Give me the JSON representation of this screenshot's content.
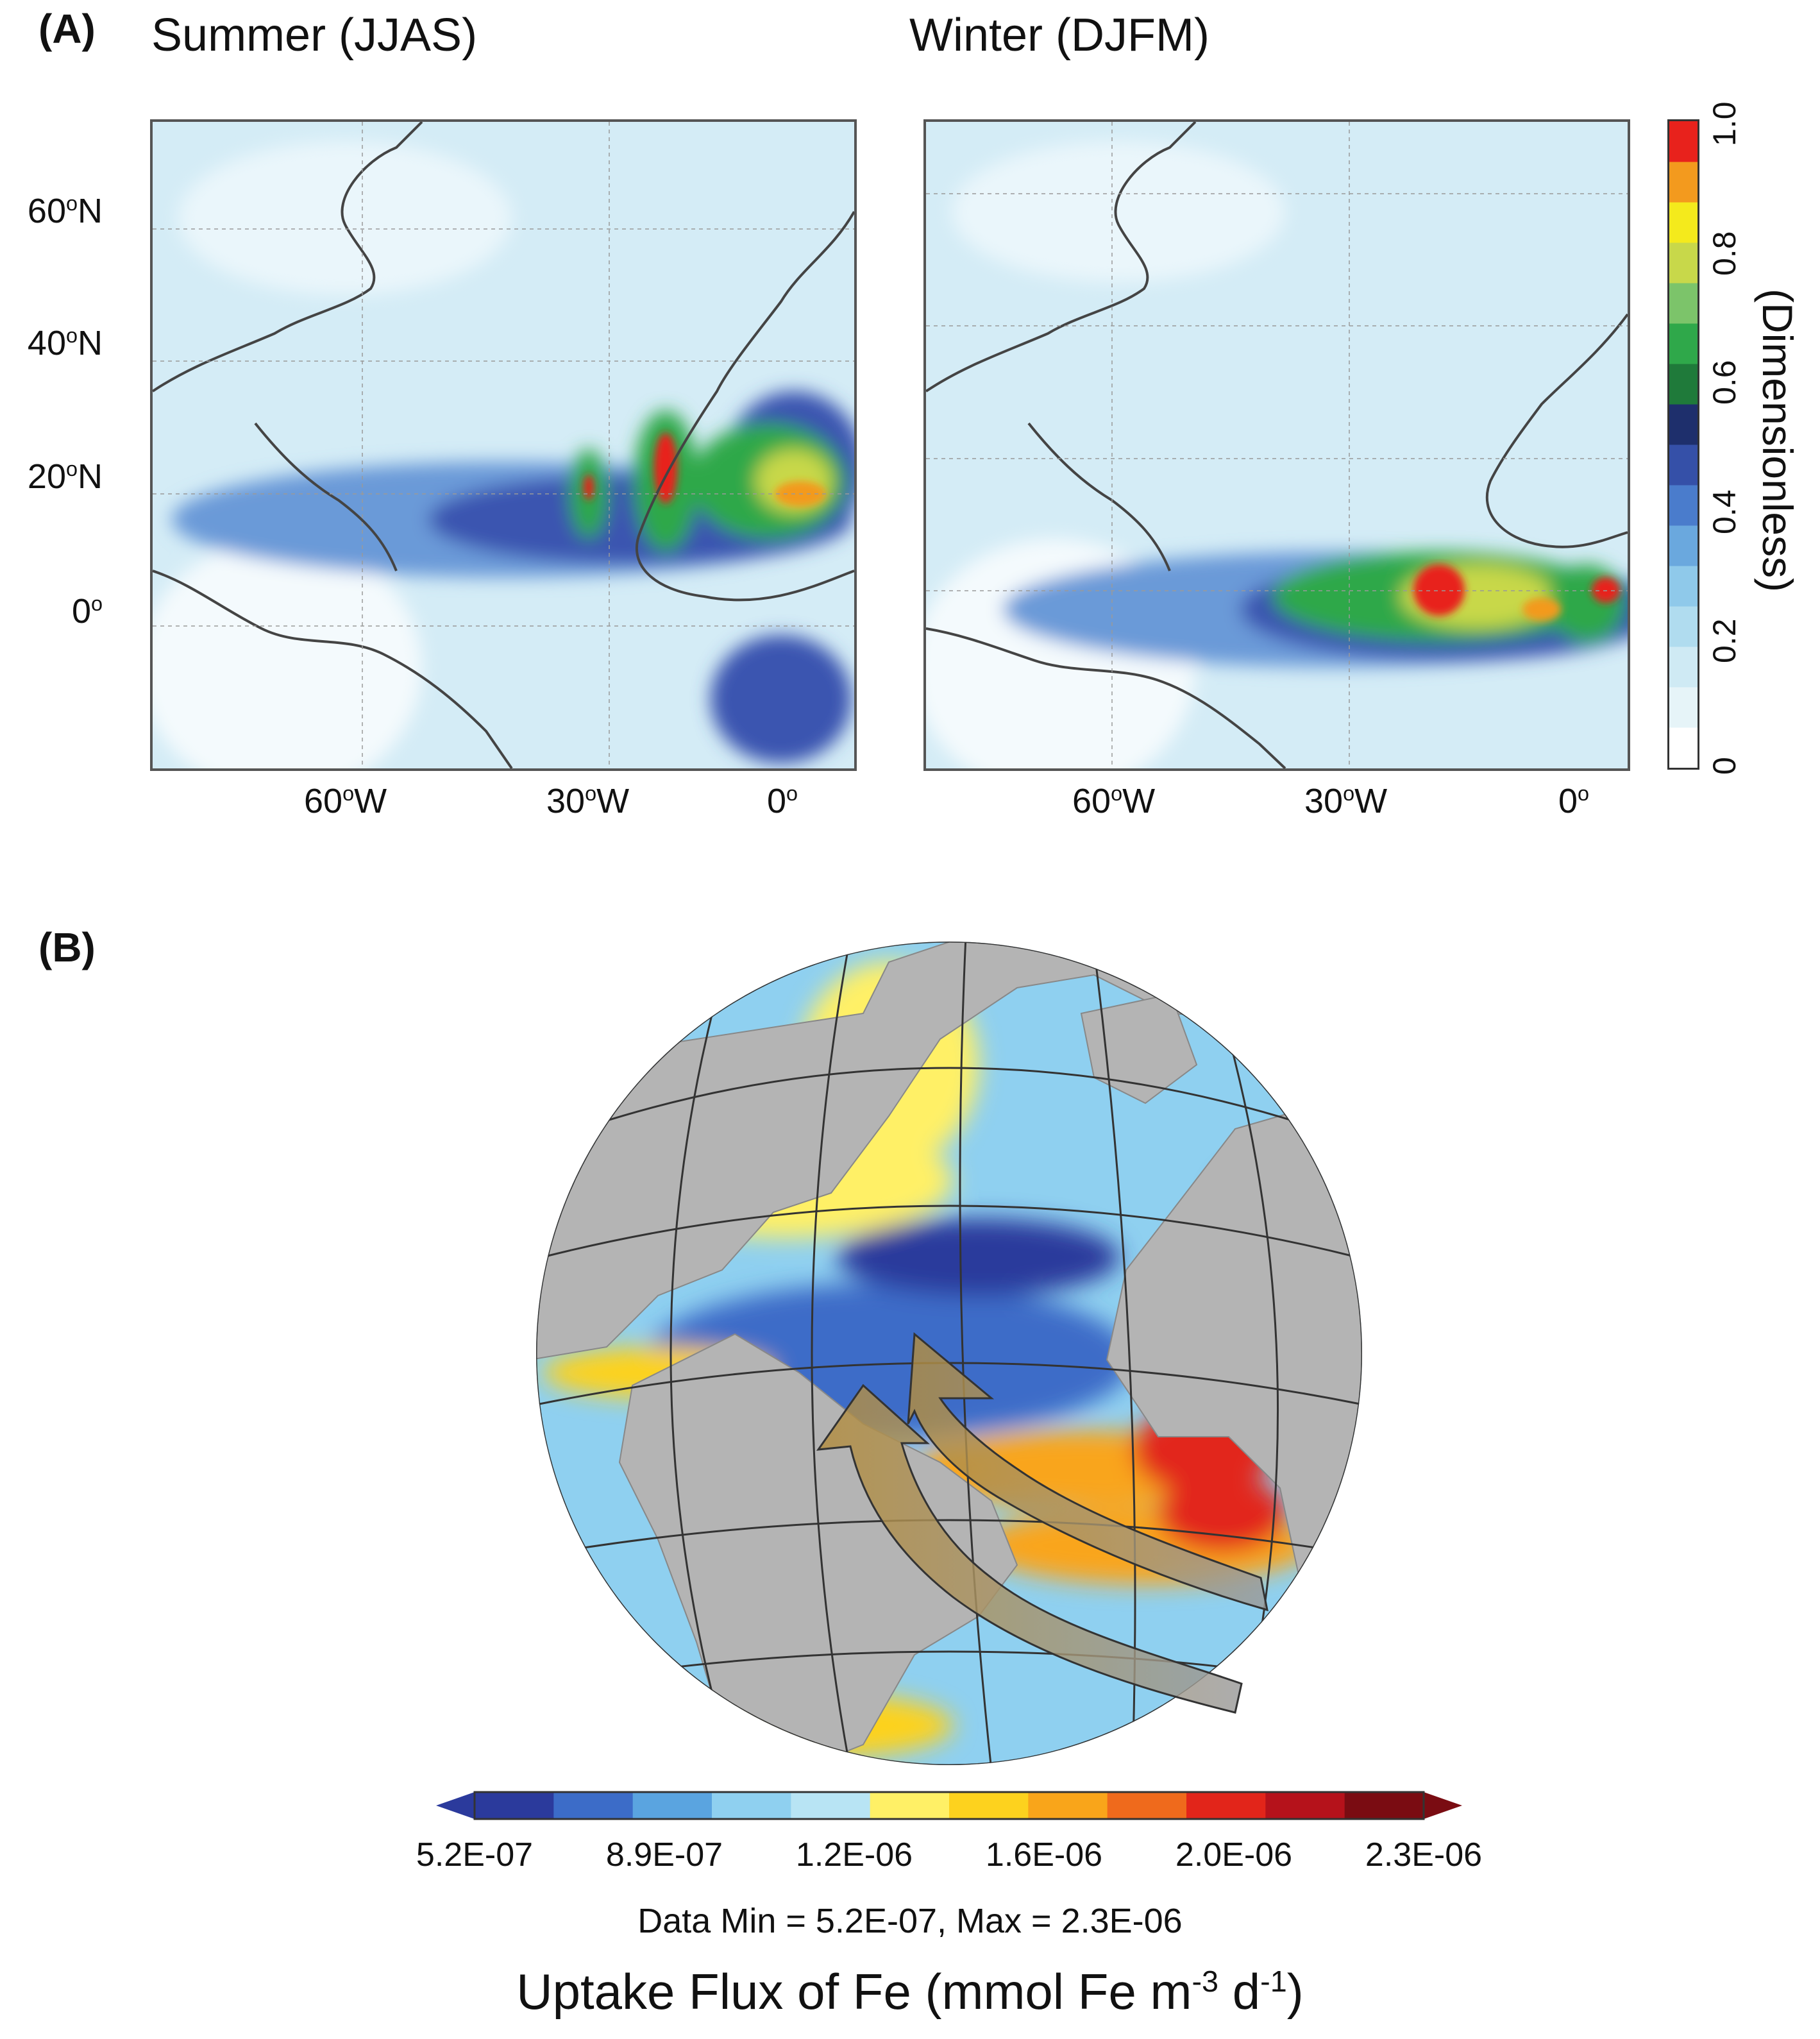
{
  "panel_a": {
    "label": "(A)",
    "maps": [
      {
        "title": "Summer (JJAS)"
      },
      {
        "title": "Winter (DJFM)"
      }
    ],
    "lat_ticks": [
      {
        "deg": "60",
        "suffix": "N"
      },
      {
        "deg": "40",
        "suffix": "N"
      },
      {
        "deg": "20",
        "suffix": "N"
      },
      {
        "deg": "0",
        "suffix": ""
      }
    ],
    "lon_ticks": [
      {
        "deg": "60",
        "suffix": "W"
      },
      {
        "deg": "30",
        "suffix": "W"
      },
      {
        "deg": "0",
        "suffix": ""
      }
    ],
    "colorbar": {
      "label": "(Dimensionless)",
      "ticks": [
        "0",
        "0.2",
        "0.4",
        "0.6",
        "0.8",
        "1.0"
      ],
      "range": [
        0,
        1.0
      ],
      "colors": [
        "#ffffff",
        "#e6f4f8",
        "#cfeaf4",
        "#b0dcef",
        "#8fc9ea",
        "#6aa8de",
        "#4a7ccc",
        "#3550a8",
        "#1e2f6c",
        "#1f7a3a",
        "#2fa84a",
        "#7cc46a",
        "#c8d84a",
        "#f4ea1c",
        "#f39a1e",
        "#e8221c"
      ]
    }
  },
  "panel_b": {
    "label": "(B)",
    "colorbar": {
      "ticks": [
        "5.2E-07",
        "8.9E-07",
        "1.2E-06",
        "1.6E-06",
        "2.0E-06",
        "2.3E-06"
      ],
      "colors": [
        "#2b3a9c",
        "#3c6cc8",
        "#5aa4e0",
        "#8fd0f0",
        "#b8e4f4",
        "#fff066",
        "#fdd21e",
        "#f9a51a",
        "#ef6a1c",
        "#e2251a",
        "#b5121b",
        "#7a0c12"
      ]
    },
    "data_range_text": "Data Min = 5.2E-07, Max = 2.3E-06",
    "title": {
      "pre": "Uptake Flux of Fe (mmol Fe m",
      "sup1": "-3",
      "mid": " d",
      "sup2": "-1",
      "post": ")"
    }
  }
}
